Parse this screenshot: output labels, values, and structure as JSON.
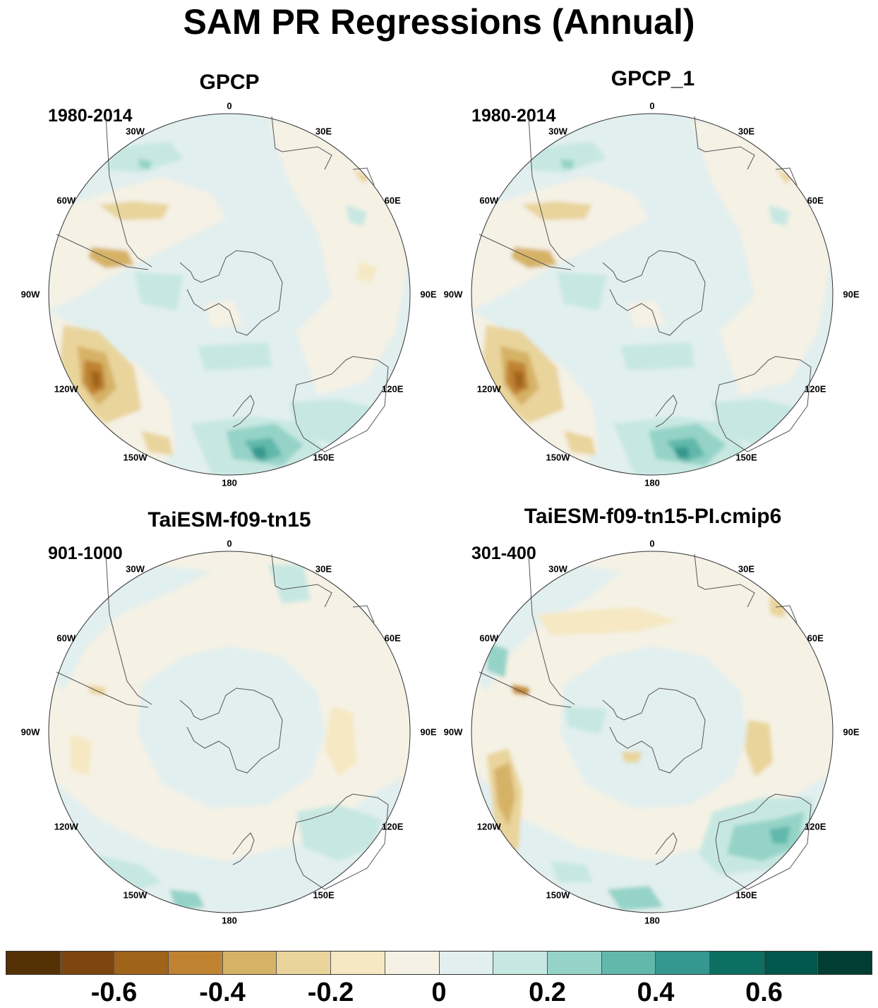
{
  "title": "SAM PR Regressions (Annual)",
  "panels": [
    {
      "name": "GPCP",
      "period": "1980-2014"
    },
    {
      "name": "GPCP_1",
      "period": "1980-2014"
    },
    {
      "name": "TaiESM-f09-tn15",
      "period": "901-1000"
    },
    {
      "name": "TaiESM-f09-tn15-PI.cmip6",
      "period": "301-400"
    }
  ],
  "longitude_labels": [
    "0",
    "30E",
    "60E",
    "90E",
    "120E",
    "150E",
    "180",
    "150W",
    "120W",
    "90W",
    "60W",
    "30W"
  ],
  "colorbar": {
    "colors": [
      "#543005",
      "#7d4610",
      "#a0631a",
      "#bf8331",
      "#d6b266",
      "#e9d49b",
      "#f5e8c3",
      "#f5f1e5",
      "#e2efef",
      "#c7e8e2",
      "#95d3c8",
      "#61b8ab",
      "#35978f",
      "#0d6f62",
      "#01574b",
      "#013d32"
    ],
    "tick_labels": [
      "-0.6",
      "-0.4",
      "-0.2",
      "0",
      "0.2",
      "0.4",
      "0.6"
    ]
  }
}
